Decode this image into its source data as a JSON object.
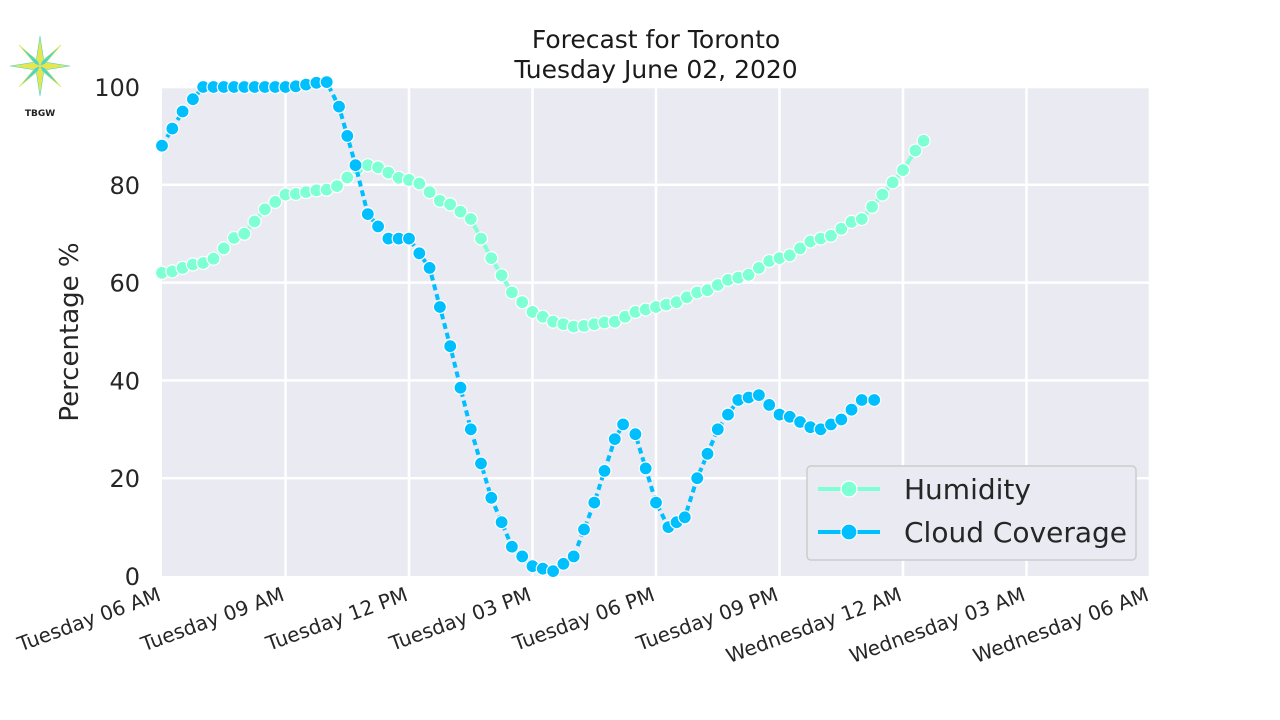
{
  "logo": {
    "text": "TBGW"
  },
  "chart_data": {
    "type": "line",
    "title": "Forecast for Toronto",
    "subtitle": "Tuesday June 02, 2020",
    "ylabel": "Percentage %",
    "xlabel": "",
    "ylim": [
      0,
      100
    ],
    "yticks": [
      0,
      20,
      40,
      60,
      80,
      100
    ],
    "xlim": [
      0,
      24
    ],
    "x_unit": "hours after Tuesday 06 AM",
    "x_tick_positions": [
      0,
      3,
      6,
      9,
      12,
      15,
      18,
      21,
      24
    ],
    "x_tick_labels": [
      "Tuesday 06 AM",
      "Tuesday 09 AM",
      "Tuesday 12 PM",
      "Tuesday 03 PM",
      "Tuesday 06 PM",
      "Tuesday 09 PM",
      "Wednesday 12 AM",
      "Wednesday 03 AM",
      "Wednesday 06 AM"
    ],
    "grid": true,
    "legend_position": "lower-right",
    "background_color": "#eaeaf2",
    "series": [
      {
        "name": "Humidity",
        "color": "#7fffd4",
        "points": [
          [
            0,
            62
          ],
          [
            1,
            64
          ],
          [
            2,
            70
          ],
          [
            2.5,
            75
          ],
          [
            3,
            78
          ],
          [
            4,
            79
          ],
          [
            5,
            84
          ],
          [
            6,
            81
          ],
          [
            7,
            76
          ],
          [
            7.5,
            73
          ],
          [
            8,
            65
          ],
          [
            8.5,
            58
          ],
          [
            9,
            54
          ],
          [
            9.5,
            52
          ],
          [
            10,
            51
          ],
          [
            11,
            52
          ],
          [
            11.5,
            54
          ],
          [
            12,
            55
          ],
          [
            12.5,
            56
          ],
          [
            13,
            58
          ],
          [
            14,
            61
          ],
          [
            15,
            65
          ],
          [
            16,
            69
          ],
          [
            17,
            73
          ],
          [
            17.5,
            78
          ],
          [
            18,
            83
          ],
          [
            18.3,
            87
          ],
          [
            18.5,
            89
          ]
        ]
      },
      {
        "name": "Cloud Coverage",
        "color": "#00bfff",
        "points": [
          [
            0,
            88
          ],
          [
            0.5,
            95
          ],
          [
            1,
            100
          ],
          [
            2,
            100
          ],
          [
            3,
            100
          ],
          [
            4,
            101
          ],
          [
            4.3,
            96
          ],
          [
            4.7,
            84
          ],
          [
            5,
            74
          ],
          [
            5.5,
            69
          ],
          [
            6,
            69
          ],
          [
            6.5,
            63
          ],
          [
            7,
            47
          ],
          [
            7.5,
            30
          ],
          [
            8,
            16
          ],
          [
            8.5,
            6
          ],
          [
            9,
            2
          ],
          [
            9.5,
            1
          ],
          [
            10,
            4
          ],
          [
            10.5,
            15
          ],
          [
            11,
            28
          ],
          [
            11.2,
            31
          ],
          [
            11.5,
            29
          ],
          [
            12,
            15
          ],
          [
            12.3,
            10
          ],
          [
            12.7,
            12
          ],
          [
            13,
            20
          ],
          [
            13.5,
            30
          ],
          [
            14,
            36
          ],
          [
            14.5,
            37
          ],
          [
            15,
            33
          ],
          [
            16,
            30
          ],
          [
            16.5,
            32
          ],
          [
            17,
            36
          ],
          [
            17.3,
            36
          ]
        ]
      }
    ]
  }
}
